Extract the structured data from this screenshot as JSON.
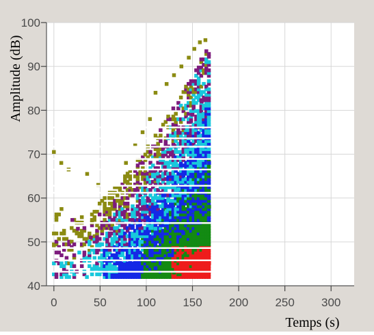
{
  "chart_data": {
    "type": "scatter",
    "title": "",
    "xlabel": "Temps (s)",
    "ylabel": "Amplitude (dB)",
    "xlim": [
      -8,
      325
    ],
    "ylim": [
      40,
      100
    ],
    "xticks": [
      0,
      50,
      100,
      150,
      200,
      250,
      300
    ],
    "yticks": [
      40,
      50,
      60,
      70,
      80,
      90,
      100
    ],
    "xtick_labels": [
      "0",
      "50",
      "100",
      "150",
      "200",
      "250",
      "300"
    ],
    "ytick_labels": [
      "40",
      "50",
      "60",
      "70",
      "80",
      "90",
      "100"
    ],
    "grid": true,
    "legend": "none",
    "data_extent": {
      "t_min": 0,
      "t_max": 170,
      "amp_min": 42,
      "amp_max": 96
    },
    "amplitude_gaps_db": [
      43.2,
      45.8,
      48.6,
      54.3,
      61.2,
      62.8,
      66.5,
      68.9,
      71.7,
      73.6,
      76.1
    ],
    "series_colors": {
      "sparse": "#8b8b12",
      "low_density": "#7d1b7d",
      "medium_density": "#18c8dc",
      "high_density": "#1428e6",
      "very_high_density": "#138a13",
      "peak_density": "#ee1c1c"
    },
    "samples": [
      [
        0,
        70.5,
        0
      ],
      [
        8,
        68,
        0
      ],
      [
        16,
        66.5,
        0
      ],
      [
        36,
        65.5,
        0
      ],
      [
        48,
        63,
        0
      ],
      [
        60,
        60,
        0
      ],
      [
        78,
        68,
        0
      ],
      [
        88,
        72,
        0
      ],
      [
        96,
        75,
        0
      ],
      [
        104,
        78,
        0
      ],
      [
        110,
        84,
        0
      ],
      [
        122,
        86,
        0
      ],
      [
        130,
        88,
        0
      ],
      [
        138,
        90,
        0
      ],
      [
        146,
        92,
        0
      ],
      [
        152,
        94,
        0
      ],
      [
        158,
        95.5,
        0
      ],
      [
        164,
        96,
        0
      ],
      [
        20,
        55,
        1
      ],
      [
        26,
        53,
        1
      ],
      [
        40,
        51,
        1
      ],
      [
        62,
        53,
        1
      ],
      [
        85,
        55,
        1
      ],
      [
        98,
        58,
        1
      ],
      [
        110,
        63,
        1
      ],
      [
        120,
        67,
        1
      ],
      [
        130,
        72,
        1
      ],
      [
        140,
        76,
        1
      ],
      [
        150,
        79,
        1
      ],
      [
        160,
        82,
        1
      ],
      [
        95,
        50,
        2
      ],
      [
        110,
        53,
        2
      ],
      [
        122,
        57,
        2
      ],
      [
        135,
        62,
        2
      ],
      [
        148,
        67,
        2
      ],
      [
        160,
        72,
        2
      ],
      [
        110,
        44,
        3
      ],
      [
        125,
        47,
        3
      ],
      [
        140,
        52,
        3
      ],
      [
        150,
        57,
        3
      ],
      [
        160,
        63,
        3
      ],
      [
        168,
        68,
        3
      ],
      [
        130,
        43,
        4
      ],
      [
        142,
        47,
        4
      ],
      [
        152,
        51,
        4
      ],
      [
        162,
        55,
        4
      ],
      [
        168,
        58,
        4
      ],
      [
        155,
        42.5,
        5
      ],
      [
        162,
        44,
        5
      ],
      [
        168,
        45.2,
        5
      ]
    ]
  }
}
